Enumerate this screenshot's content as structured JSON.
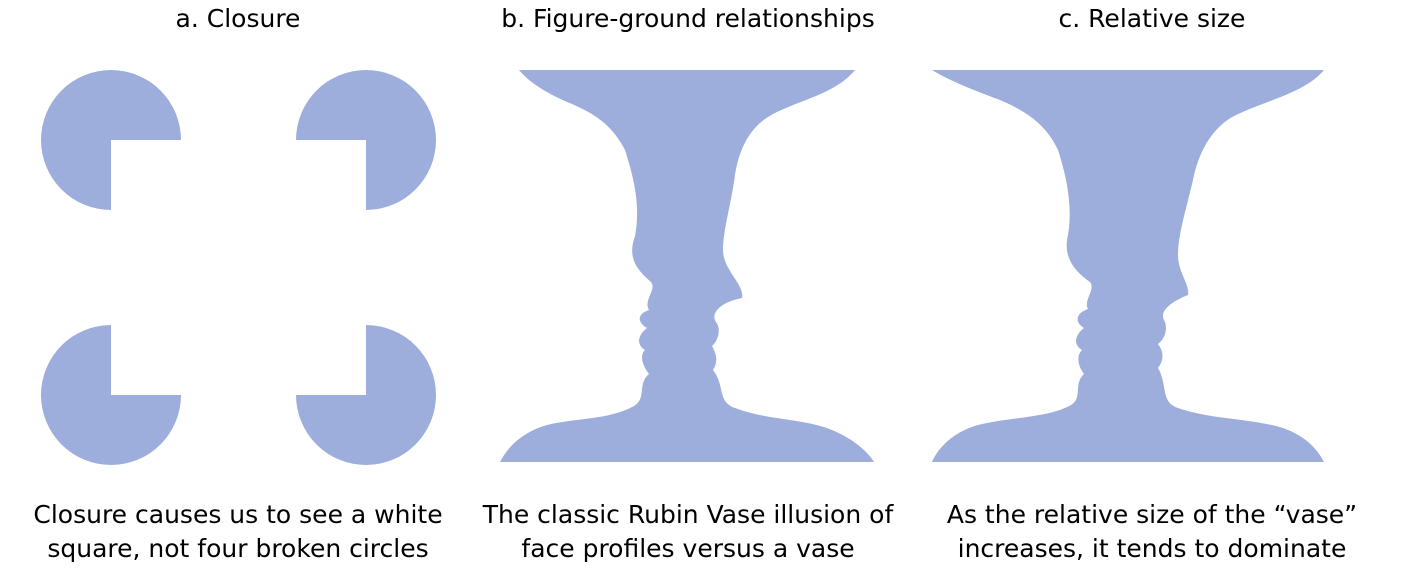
{
  "panels": [
    {
      "title": "a.  Closure",
      "caption": [
        "Closure causes us to see a white",
        "square, not four broken circles"
      ]
    },
    {
      "title": "b.  Figure-ground relationships",
      "caption": [
        "The classic Rubin Vase illusion of",
        "face profiles versus a vase"
      ]
    },
    {
      "title": "c.  Relative size",
      "caption": [
        "As the relative size of the “vase”",
        "increases, it tends to dominate"
      ]
    }
  ],
  "colors": {
    "shape_fill": "#9daedc",
    "background": "#ffffff",
    "text": "#000000"
  }
}
